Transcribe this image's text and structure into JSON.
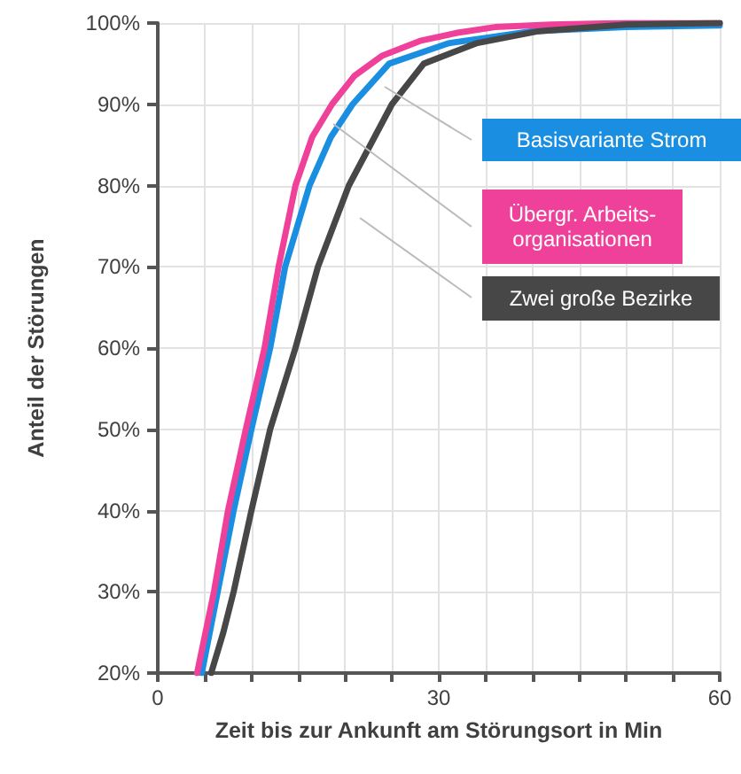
{
  "chart_data": {
    "type": "line",
    "xlabel": "Zeit bis zur Ankunft am Störungsort in Min",
    "ylabel": "Anteil der Störungen",
    "xlim": [
      0,
      60
    ],
    "ylim": [
      20,
      100
    ],
    "xticks": [
      0,
      {
        "value": 5,
        "label": null
      },
      {
        "value": 10,
        "label": null
      },
      {
        "value": 15,
        "label": null
      },
      {
        "value": 20,
        "label": null
      },
      {
        "value": 25,
        "label": null
      },
      30,
      {
        "value": 35,
        "label": null
      },
      {
        "value": 40,
        "label": null
      },
      {
        "value": 45,
        "label": null
      },
      {
        "value": 50,
        "label": null
      },
      {
        "value": 55,
        "label": null
      },
      60
    ],
    "yticks": [
      {
        "value": 20,
        "label": "20%"
      },
      {
        "value": 30,
        "label": "30%"
      },
      {
        "value": 40,
        "label": "40%"
      },
      {
        "value": 50,
        "label": "50%"
      },
      {
        "value": 60,
        "label": "60%"
      },
      {
        "value": 70,
        "label": "70%"
      },
      {
        "value": 80,
        "label": "80%"
      },
      {
        "value": 90,
        "label": "90%"
      },
      {
        "value": 100,
        "label": "100%"
      }
    ],
    "grid": true,
    "marker": "none",
    "line_style": "solid",
    "series": [
      {
        "name": "Basisvariante Strom",
        "color": "#1a8ee0",
        "x": [
          4.7,
          6.4,
          8.1,
          10,
          12,
          13.6,
          16.2,
          18.5,
          20.8,
          24.7,
          31,
          40,
          50,
          60
        ],
        "values": [
          20,
          30,
          40,
          50,
          60,
          70,
          80,
          86,
          90,
          95,
          97.5,
          99,
          99.5,
          99.7
        ]
      },
      {
        "name": "Übergr. Arbeits-\norganisationen",
        "color": "#f0419a",
        "x": [
          4.2,
          6,
          7.5,
          9.4,
          11.4,
          12.9,
          14.7,
          16.5,
          18.6,
          21,
          24,
          28,
          32,
          36,
          42,
          50,
          60
        ],
        "values": [
          20,
          30,
          40,
          50,
          60,
          70,
          80,
          86,
          90,
          93.5,
          96,
          97.8,
          98.8,
          99.5,
          99.8,
          100,
          100
        ]
      },
      {
        "name": "Zwei große Bezirke",
        "color": "#474747",
        "x": [
          5.7,
          7,
          8.1,
          10,
          12,
          14.7,
          17.1,
          20.4,
          25,
          28.4,
          34,
          40.7,
          50,
          60
        ],
        "values": [
          20,
          25,
          30,
          40,
          50,
          60,
          70,
          80,
          90,
          95,
          97.5,
          99,
          99.8,
          100
        ]
      }
    ]
  }
}
